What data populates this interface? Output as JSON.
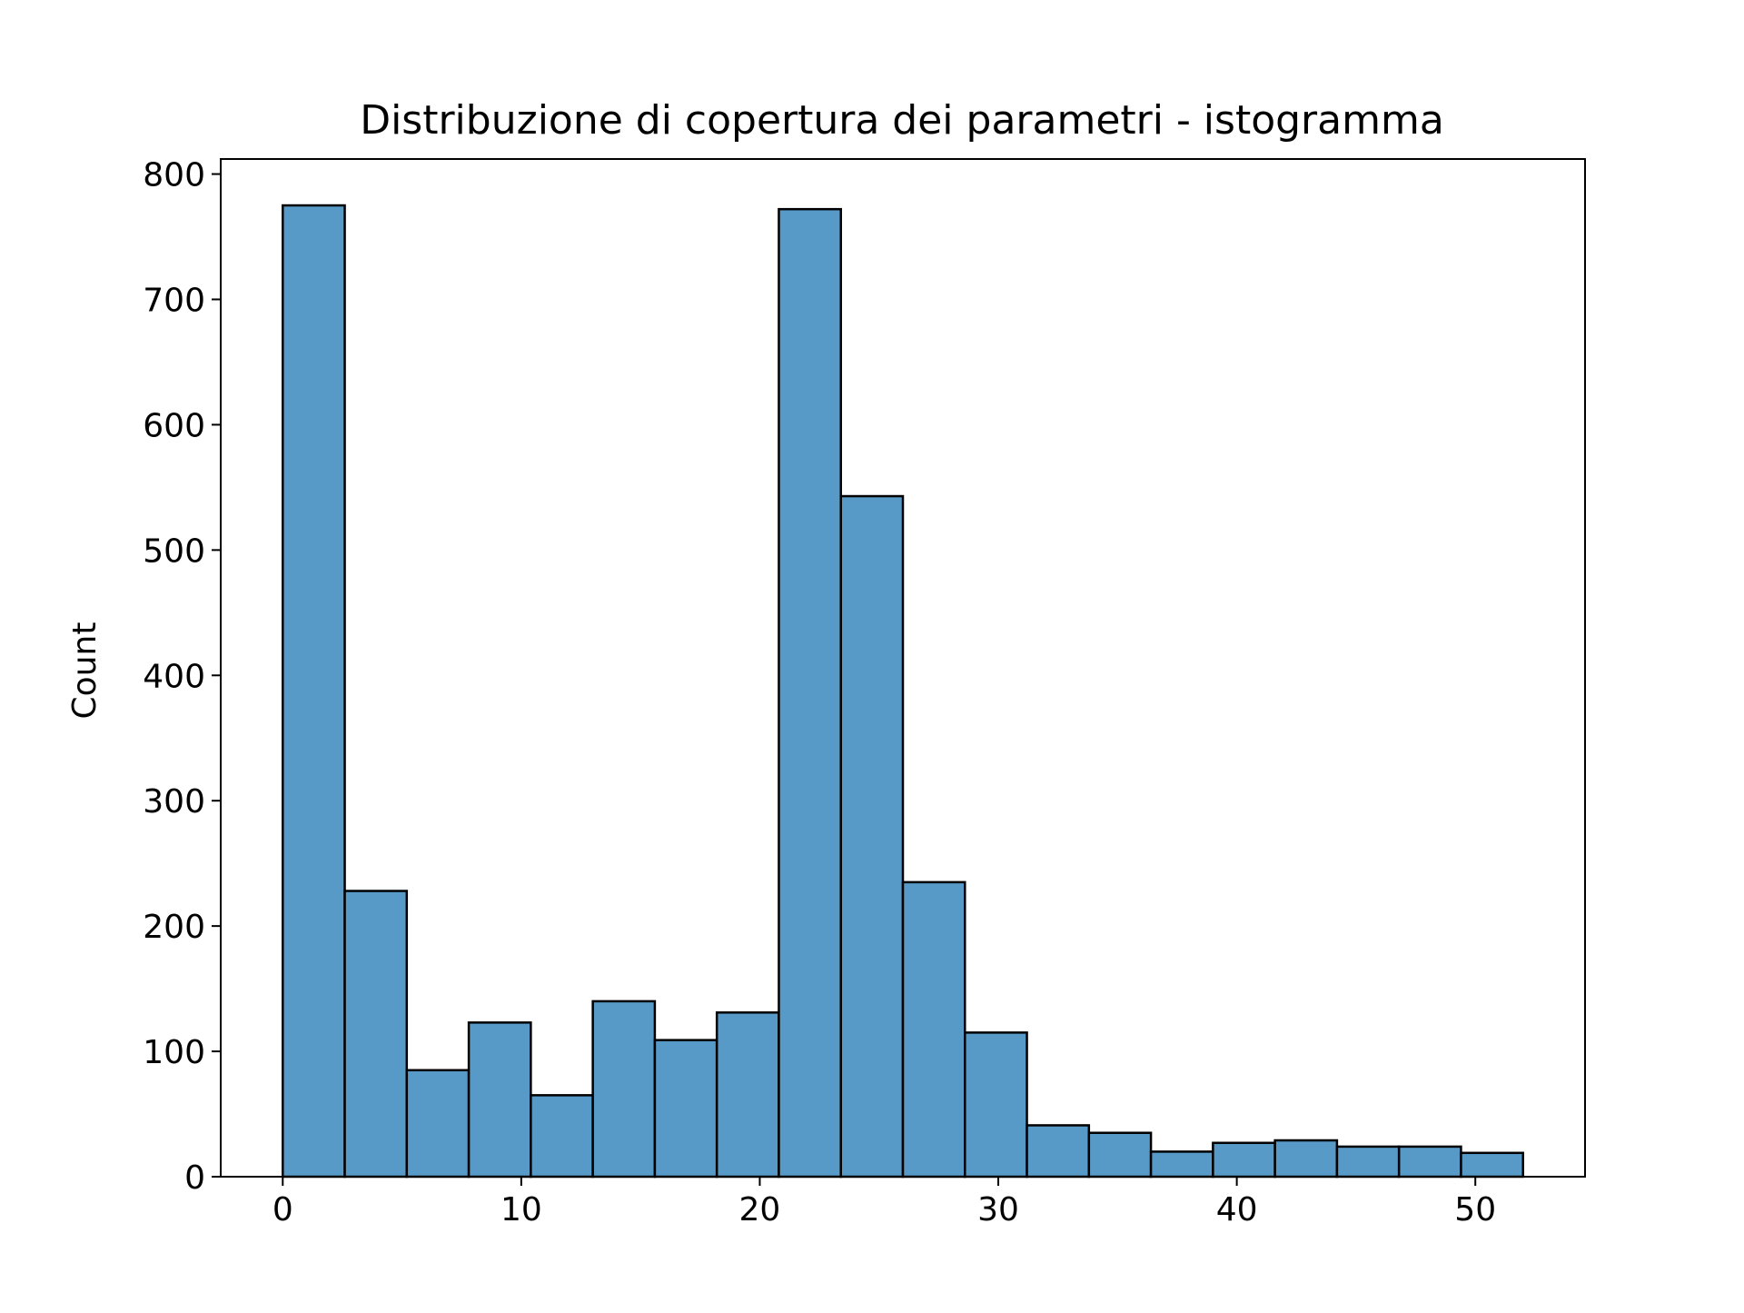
{
  "chart_data": {
    "type": "bar",
    "title": "Distribuzione di copertura dei parametri - istogramma",
    "xlabel": "",
    "ylabel": "Count",
    "bin_edges": [
      0,
      2.6,
      5.2,
      7.8,
      10.4,
      13.0,
      15.6,
      18.2,
      20.8,
      23.4,
      26.0,
      28.6,
      31.2,
      33.8,
      36.4,
      39.0,
      41.6,
      44.2,
      46.8,
      49.4,
      52.0
    ],
    "values": [
      775,
      228,
      85,
      123,
      65,
      140,
      109,
      131,
      772,
      543,
      235,
      115,
      41,
      35,
      20,
      27,
      29,
      24,
      24,
      19
    ],
    "xlim": [
      -2.6,
      54.6
    ],
    "ylim": [
      0,
      812
    ],
    "x_ticks": [
      0,
      10,
      20,
      30,
      40,
      50
    ],
    "y_ticks": [
      0,
      100,
      200,
      300,
      400,
      500,
      600,
      700,
      800
    ],
    "grid": false,
    "legend": "none",
    "colors": {
      "bar_fill": "#5799c7",
      "bar_edge": "#000000",
      "axes": "#000000"
    }
  }
}
